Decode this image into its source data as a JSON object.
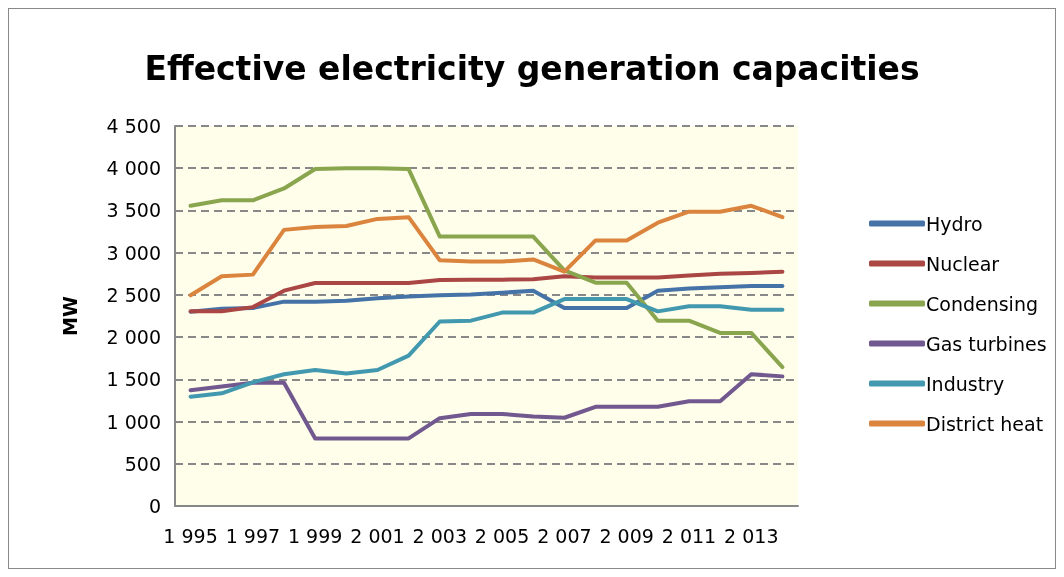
{
  "chart_data": {
    "type": "line",
    "title": "Effective electricity generation capacities",
    "ylabel": "MW",
    "categories": [
      "1 995",
      null,
      "1 997",
      null,
      "1 999",
      null,
      "2 001",
      null,
      "2 003",
      null,
      "2 005",
      null,
      "2 007",
      null,
      "2 009",
      null,
      "2 011",
      null,
      "2 013",
      null
    ],
    "series": [
      {
        "name": "Hydro",
        "color": "#4572a7",
        "values": [
          2300,
          2335,
          2345,
          2420,
          2420,
          2430,
          2460,
          2480,
          2495,
          2505,
          2525,
          2550,
          2345,
          2345,
          2345,
          2550,
          2575,
          2590,
          2605,
          2605
        ]
      },
      {
        "name": "Nuclear",
        "color": "#aa4643",
        "values": [
          2305,
          2305,
          2355,
          2550,
          2640,
          2640,
          2640,
          2640,
          2675,
          2680,
          2680,
          2685,
          2720,
          2705,
          2705,
          2705,
          2730,
          2750,
          2760,
          2775
        ]
      },
      {
        "name": "Condensing",
        "color": "#89a54e",
        "values": [
          3555,
          3620,
          3620,
          3760,
          3990,
          4000,
          4000,
          3990,
          3190,
          3190,
          3190,
          3190,
          2790,
          2645,
          2645,
          2195,
          2195,
          2050,
          2050,
          1645
        ]
      },
      {
        "name": "Gas turbines",
        "color": "#71588f",
        "values": [
          1370,
          1415,
          1460,
          1460,
          800,
          800,
          800,
          800,
          1040,
          1090,
          1090,
          1060,
          1045,
          1175,
          1175,
          1175,
          1240,
          1240,
          1560,
          1535
        ]
      },
      {
        "name": "Industry",
        "color": "#4198af",
        "values": [
          1295,
          1335,
          1465,
          1560,
          1610,
          1570,
          1610,
          1780,
          2185,
          2195,
          2290,
          2290,
          2450,
          2450,
          2450,
          2305,
          2365,
          2365,
          2325,
          2325
        ]
      },
      {
        "name": "District heat",
        "color": "#db843d",
        "values": [
          2495,
          2720,
          2740,
          3270,
          3305,
          3315,
          3400,
          3420,
          2910,
          2895,
          2895,
          2920,
          2775,
          3145,
          3145,
          3355,
          3485,
          3485,
          3555,
          3420
        ]
      }
    ],
    "ylim": [
      0,
      4500
    ],
    "yticks": [
      0,
      500,
      {
        "value": 1000,
        "label": "1 000"
      },
      {
        "value": 1500,
        "label": "1 500"
      },
      {
        "value": 2000,
        "label": "2 000"
      },
      {
        "value": 2500,
        "label": "2 500"
      },
      {
        "value": 3000,
        "label": "3 000"
      },
      {
        "value": 3500,
        "label": "3 500"
      },
      {
        "value": 4000,
        "label": "4 000"
      },
      {
        "value": 4500,
        "label": "4 500"
      }
    ],
    "grid": "y",
    "legend": "right",
    "marker": "none",
    "line_style": "solid"
  }
}
